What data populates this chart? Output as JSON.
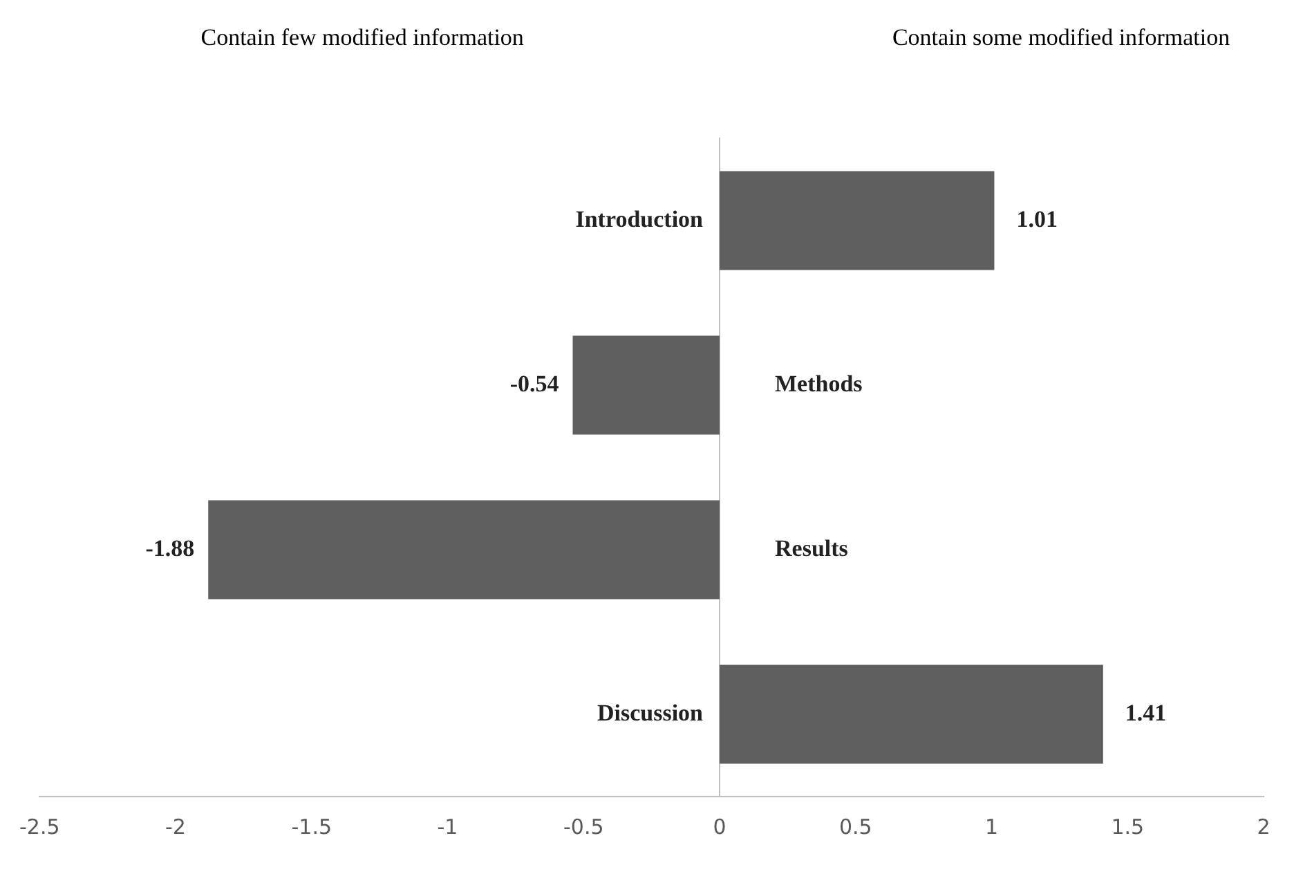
{
  "chart_data": {
    "type": "bar",
    "orientation": "horizontal",
    "categories": [
      "Introduction",
      "Methods",
      "Results",
      "Discussion"
    ],
    "values": [
      1.01,
      -0.54,
      -1.88,
      1.41
    ],
    "color": "#5f5f5f",
    "xlim": [
      -2.5,
      2
    ],
    "xticks": [
      -2.5,
      -2,
      -1.5,
      -1,
      -0.5,
      0,
      0.5,
      1,
      1.5,
      2
    ],
    "grid": false,
    "legend": false,
    "data_labels": true,
    "annotations": [
      "Contain few modified information",
      "Contain some modified information"
    ]
  }
}
